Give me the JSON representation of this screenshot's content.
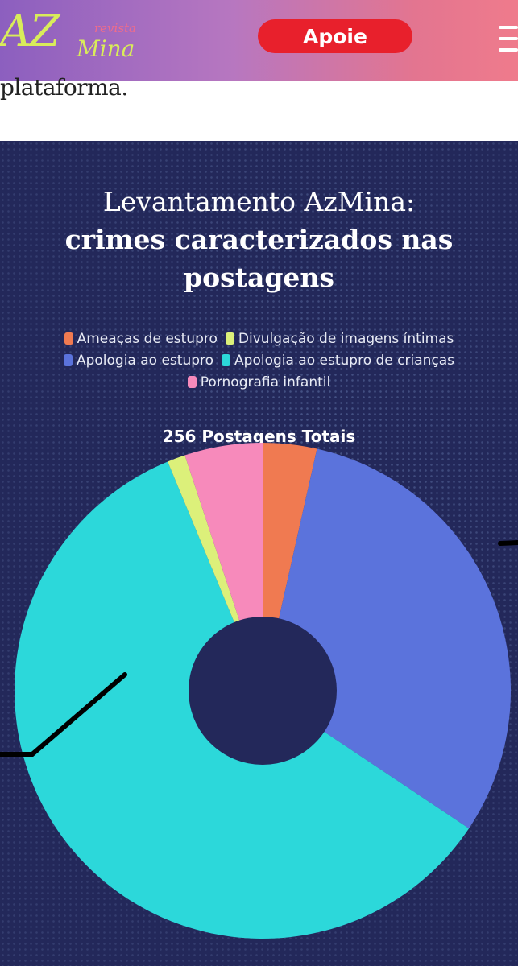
{
  "header": {
    "logo_main": "AZ",
    "logo_revista": "revista",
    "logo_sub": "Mina",
    "support_button": "Apoie"
  },
  "article": {
    "text_fragment": "plataforma."
  },
  "infographic": {
    "title_line1": "Levantamento AzMina:",
    "title_line2": "crimes caracterizados nas",
    "title_line3": "postagens",
    "total_label": "256 Postagens Totais"
  },
  "chart_data": {
    "type": "pie",
    "title": "Levantamento AzMina: crimes caracterizados nas postagens",
    "subtitle": "256 Postagens Totais",
    "total": 256,
    "legend_placement": "top",
    "series": [
      {
        "name": "Ameaças de estupro",
        "value": 9,
        "color": "#f07a51"
      },
      {
        "name": "Apologia ao estupro",
        "value": 79,
        "color": "#5b73dc"
      },
      {
        "name": "Apologia ao estupro de crianças",
        "value": 152,
        "color": "#2cd8da"
      },
      {
        "name": "Divulgação de imagens íntimas",
        "value": 3,
        "color": "#dcf07a"
      },
      {
        "name": "Pornografia infantil",
        "value": 13,
        "color": "#f78abb"
      }
    ],
    "legend_rows": [
      [
        "Ameaças de estupro",
        "Divulgação de imagens íntimas"
      ],
      [
        "Apologia ao estupro",
        "Apologia ao estupro de crianças"
      ],
      [
        "Pornografia infantil"
      ]
    ]
  },
  "colors": {
    "header_start": "#8c5fbf",
    "header_end": "#ef7b8c",
    "support_button": "#e8202c",
    "panel_bg": "#23285a"
  },
  "icons": {
    "menu": "hamburger-menu-icon"
  }
}
